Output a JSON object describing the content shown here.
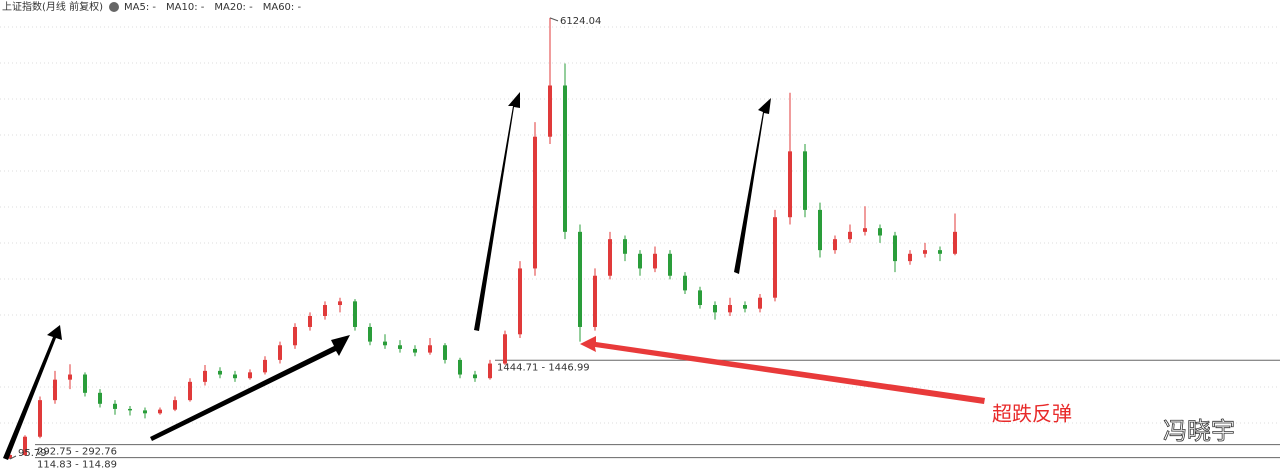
{
  "chart_data": {
    "type": "candlestick",
    "title": "上证指数(月线 前复权)",
    "legend": [
      {
        "text": "MA5: -",
        "color": "#888888"
      },
      {
        "text": "MA10: -",
        "color": "#1f8fd6"
      },
      {
        "text": "MA20: -",
        "color": "#a020a0"
      },
      {
        "text": "MA60: -",
        "color": "#999999"
      }
    ],
    "ylim": [
      0,
      6300
    ],
    "up_color": "#e03a3a",
    "down_color": "#2a9d3a",
    "candles": [
      [
        100,
        160,
        95.79,
        150
      ],
      [
        150,
        420,
        140,
        400
      ],
      [
        400,
        950,
        380,
        900
      ],
      [
        900,
        1300,
        850,
        1180
      ],
      [
        1180,
        1390,
        1050,
        1250
      ],
      [
        1250,
        1280,
        950,
        1000
      ],
      [
        1000,
        1050,
        800,
        850
      ],
      [
        850,
        900,
        700,
        780
      ],
      [
        780,
        820,
        690,
        760
      ],
      [
        760,
        800,
        650,
        720
      ],
      [
        720,
        800,
        700,
        770
      ],
      [
        770,
        950,
        750,
        900
      ],
      [
        900,
        1200,
        880,
        1150
      ],
      [
        1150,
        1380,
        1100,
        1300
      ],
      [
        1300,
        1350,
        1200,
        1250
      ],
      [
        1250,
        1300,
        1150,
        1200
      ],
      [
        1200,
        1320,
        1180,
        1280
      ],
      [
        1280,
        1500,
        1250,
        1450
      ],
      [
        1450,
        1700,
        1400,
        1650
      ],
      [
        1650,
        1950,
        1600,
        1900
      ],
      [
        1900,
        2100,
        1850,
        2050
      ],
      [
        2050,
        2250,
        2000,
        2200
      ],
      [
        2200,
        2300,
        2100,
        2250
      ],
      [
        2250,
        2280,
        1850,
        1900
      ],
      [
        1900,
        1950,
        1650,
        1700
      ],
      [
        1700,
        1800,
        1600,
        1650
      ],
      [
        1650,
        1720,
        1550,
        1600
      ],
      [
        1600,
        1650,
        1500,
        1550
      ],
      [
        1550,
        1750,
        1520,
        1650
      ],
      [
        1650,
        1680,
        1400,
        1450
      ],
      [
        1450,
        1480,
        1200,
        1250
      ],
      [
        1250,
        1300,
        1150,
        1200
      ],
      [
        1200,
        1450,
        1180,
        1400
      ],
      [
        1400,
        1850,
        1380,
        1800
      ],
      [
        1800,
        2800,
        1750,
        2700
      ],
      [
        2700,
        4700,
        2600,
        4500
      ],
      [
        4500,
        6124.04,
        4400,
        5200
      ],
      [
        5200,
        5500,
        3100,
        3200
      ],
      [
        3200,
        3300,
        1700,
        1900
      ],
      [
        1900,
        2700,
        1850,
        2600
      ],
      [
        2600,
        3200,
        2550,
        3100
      ],
      [
        3100,
        3150,
        2800,
        2900
      ],
      [
        2900,
        2950,
        2600,
        2700
      ],
      [
        2700,
        3000,
        2650,
        2900
      ],
      [
        2900,
        2950,
        2550,
        2600
      ],
      [
        2600,
        2650,
        2350,
        2400
      ],
      [
        2400,
        2450,
        2150,
        2200
      ],
      [
        2200,
        2250,
        2000,
        2100
      ],
      [
        2100,
        2300,
        2050,
        2200
      ],
      [
        2200,
        2250,
        2100,
        2150
      ],
      [
        2150,
        2350,
        2100,
        2300
      ],
      [
        2300,
        3500,
        2250,
        3400
      ],
      [
        3400,
        5100,
        3300,
        4300
      ],
      [
        4300,
        4400,
        3400,
        3500
      ],
      [
        3500,
        3600,
        2850,
        2950
      ],
      [
        2950,
        3150,
        2900,
        3100
      ],
      [
        3100,
        3300,
        3050,
        3200
      ],
      [
        3200,
        3550,
        3150,
        3250
      ],
      [
        3250,
        3300,
        3050,
        3150
      ],
      [
        3150,
        3200,
        2650,
        2800
      ],
      [
        2800,
        2950,
        2750,
        2900
      ],
      [
        2900,
        3050,
        2850,
        2950
      ],
      [
        2950,
        3000,
        2800,
        2900
      ],
      [
        2900,
        3450,
        2880,
        3200
      ]
    ],
    "peak_label": {
      "text": "6124.04",
      "value": 6124.04
    },
    "levels": [
      {
        "text": "1444.71 - 1446.99",
        "value": 1444.71
      },
      {
        "text": "292.75 - 292.76",
        "value": 292.75
      },
      {
        "text": "114.83 - 114.89",
        "value": 114.83
      }
    ],
    "low_label": {
      "text": "95.79",
      "value": 95.79
    },
    "annotation": "超跌反弹",
    "watermark": "冯晓宇"
  }
}
